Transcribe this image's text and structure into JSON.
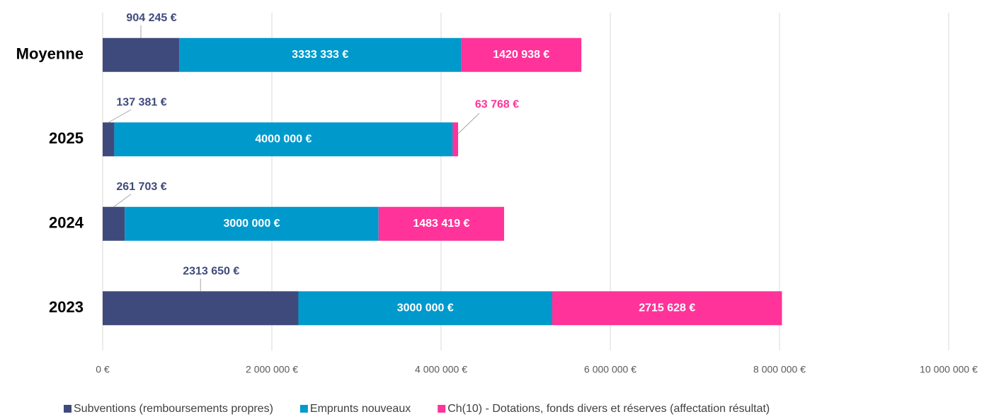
{
  "chart_data": {
    "type": "stacked_barh",
    "categories": [
      "Moyenne",
      "2025",
      "2024",
      "2023"
    ],
    "series": [
      {
        "name": "Subventions (remboursements propres)",
        "color": "#3f4a7c",
        "values": [
          904245,
          137381,
          261703,
          2313650
        ],
        "value_labels": [
          "904 245 €",
          "137 381 €",
          "261 703 €",
          "2313 650 €"
        ]
      },
      {
        "name": "Emprunts nouveaux",
        "color": "#0099cc",
        "values": [
          3333333,
          4000000,
          3000000,
          3000000
        ],
        "value_labels": [
          "3333 333 €",
          "4000 000 €",
          "3000 000 €",
          "3000 000 €"
        ]
      },
      {
        "name": "Ch(10) - Dotations, fonds divers et réserves (affectation résultat)",
        "color": "#ff3399",
        "values": [
          1420938,
          63768,
          1483419,
          2715628
        ],
        "value_labels": [
          "1420 938 €",
          "63 768 €",
          "1483 419 €",
          "2715 628 €"
        ]
      }
    ],
    "xlim": [
      0,
      10000000
    ],
    "xticks": [
      {
        "value": 0,
        "label": "0 €"
      },
      {
        "value": 2000000,
        "label": "2 000 000 €"
      },
      {
        "value": 4000000,
        "label": "4 000 000 €"
      },
      {
        "value": 6000000,
        "label": "6 000 000 €"
      },
      {
        "value": 8000000,
        "label": "8 000 000 €"
      },
      {
        "value": 10000000,
        "label": "10 000 000 €"
      }
    ],
    "grid": true,
    "legend": "bottom"
  }
}
